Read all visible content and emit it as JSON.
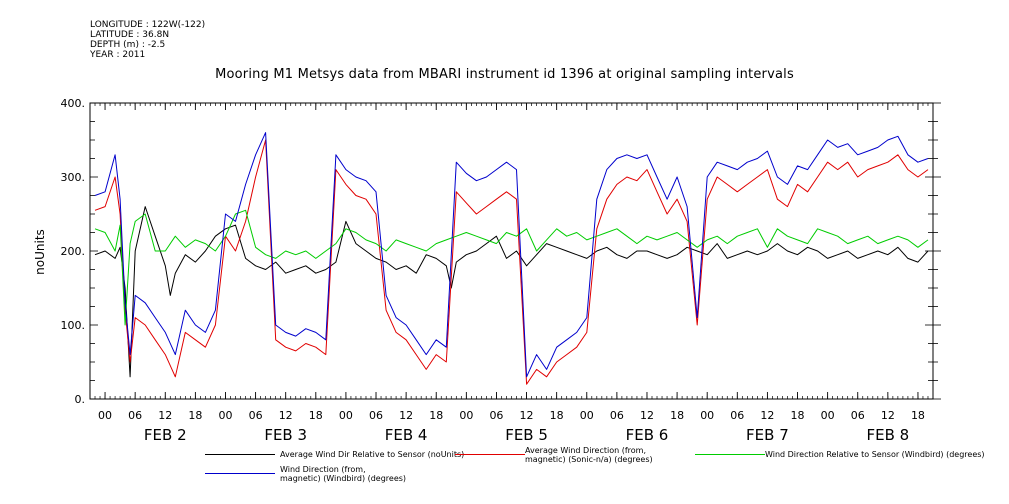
{
  "metadata": {
    "longitude": "LONGITUDE : 122W(-122)",
    "latitude": "LATITUDE : 36.8N",
    "depth": "DEPTH (m) : -2.5",
    "year": "YEAR : 2011"
  },
  "chart_data": {
    "type": "line",
    "title": "Mooring M1 Metsys data from MBARI instrument id 1396 at original sampling intervals",
    "ylabel": "noUnits",
    "ylim": [
      0,
      400
    ],
    "yticks": [
      0,
      100,
      200,
      300,
      400
    ],
    "ytick_labels": [
      "0.",
      "100.",
      "200.",
      "300.",
      "400."
    ],
    "xlim": [
      -3,
      165
    ],
    "hour_ticks": [
      0,
      6,
      12,
      18,
      24,
      30,
      36,
      42,
      48,
      54,
      60,
      66,
      72,
      78,
      84,
      90,
      96,
      102,
      108,
      114,
      120,
      126,
      132,
      138,
      144,
      150,
      156,
      162
    ],
    "hour_tick_labels": [
      "00",
      "06",
      "12",
      "18",
      "00",
      "06",
      "12",
      "18",
      "00",
      "06",
      "12",
      "18",
      "00",
      "06",
      "12",
      "18",
      "00",
      "06",
      "12",
      "18",
      "00",
      "06",
      "12",
      "18",
      "00",
      "06",
      "12",
      "18"
    ],
    "day_labels": [
      "FEB  2",
      "FEB  3",
      "FEB  4",
      "FEB  5",
      "FEB  6",
      "FEB  7",
      "FEB  8"
    ],
    "day_label_hours": [
      12,
      36,
      60,
      84,
      108,
      132,
      156
    ],
    "x_unit": "hours since 2011-02-02 00:00",
    "series": [
      {
        "name": "Average Wind Dir Relative to Sensor (noUnits)",
        "color": "#000000",
        "x": [
          -2,
          0,
          2,
          3,
          4,
          5,
          6,
          8,
          10,
          12,
          13,
          14,
          16,
          18,
          20,
          22,
          24,
          26,
          28,
          30,
          32,
          34,
          36,
          38,
          40,
          42,
          44,
          46,
          48,
          50,
          52,
          54,
          56,
          58,
          60,
          62,
          64,
          66,
          68,
          69,
          70,
          72,
          74,
          76,
          78,
          80,
          82,
          84,
          86,
          88,
          90,
          92,
          94,
          96,
          98,
          100,
          102,
          104,
          106,
          108,
          110,
          112,
          114,
          116,
          118,
          120,
          122,
          124,
          126,
          128,
          130,
          132,
          134,
          136,
          138,
          140,
          142,
          144,
          146,
          148,
          150,
          152,
          154,
          156,
          158,
          160,
          162,
          164
        ],
        "y": [
          195,
          200,
          190,
          205,
          150,
          30,
          200,
          260,
          220,
          180,
          140,
          170,
          195,
          185,
          200,
          220,
          230,
          235,
          190,
          180,
          175,
          185,
          170,
          175,
          180,
          170,
          175,
          185,
          240,
          210,
          200,
          190,
          185,
          175,
          180,
          170,
          195,
          190,
          180,
          150,
          185,
          195,
          200,
          210,
          220,
          190,
          200,
          180,
          195,
          210,
          205,
          200,
          195,
          190,
          200,
          205,
          195,
          190,
          200,
          200,
          195,
          190,
          195,
          205,
          200,
          195,
          210,
          190,
          195,
          200,
          195,
          200,
          210,
          200,
          195,
          205,
          200,
          190,
          195,
          200,
          190,
          195,
          200,
          195,
          205,
          190,
          185,
          200
        ]
      },
      {
        "name": "Average Wind Direction (from, magnetic) (Sonic-n/a) (degrees)",
        "color": "#e00000",
        "x": [
          -2,
          0,
          2,
          3,
          4,
          5,
          6,
          8,
          10,
          12,
          14,
          16,
          18,
          20,
          22,
          24,
          26,
          28,
          30,
          32,
          34,
          36,
          38,
          40,
          42,
          44,
          46,
          48,
          50,
          52,
          54,
          56,
          58,
          60,
          62,
          64,
          66,
          68,
          70,
          72,
          74,
          76,
          78,
          80,
          82,
          84,
          86,
          88,
          90,
          92,
          94,
          96,
          98,
          100,
          102,
          104,
          106,
          108,
          110,
          112,
          114,
          116,
          118,
          120,
          122,
          124,
          126,
          128,
          130,
          132,
          134,
          136,
          138,
          140,
          142,
          144,
          146,
          148,
          150,
          152,
          154,
          156,
          158,
          160,
          162,
          164
        ],
        "y": [
          255,
          260,
          300,
          250,
          120,
          50,
          110,
          100,
          80,
          60,
          30,
          90,
          80,
          70,
          100,
          220,
          200,
          240,
          300,
          350,
          80,
          70,
          65,
          75,
          70,
          60,
          310,
          290,
          275,
          270,
          250,
          120,
          90,
          80,
          60,
          40,
          60,
          50,
          280,
          265,
          250,
          260,
          270,
          280,
          270,
          20,
          40,
          30,
          50,
          60,
          70,
          90,
          230,
          270,
          290,
          300,
          295,
          310,
          280,
          250,
          270,
          240,
          100,
          270,
          300,
          290,
          280,
          290,
          300,
          310,
          270,
          260,
          290,
          280,
          300,
          320,
          310,
          320,
          300,
          310,
          315,
          320,
          330,
          310,
          300,
          310
        ]
      },
      {
        "name": "Wind Direction Relative to Sensor (Windbird) (degrees)",
        "color": "#00cc00",
        "x": [
          -2,
          0,
          2,
          3,
          4,
          5,
          6,
          8,
          10,
          12,
          14,
          16,
          18,
          20,
          22,
          24,
          26,
          28,
          30,
          32,
          34,
          36,
          38,
          40,
          42,
          44,
          46,
          48,
          50,
          52,
          54,
          56,
          58,
          60,
          62,
          64,
          66,
          68,
          70,
          72,
          74,
          76,
          78,
          80,
          82,
          84,
          86,
          88,
          90,
          92,
          94,
          96,
          98,
          100,
          102,
          104,
          106,
          108,
          110,
          112,
          114,
          116,
          118,
          120,
          122,
          124,
          126,
          128,
          130,
          132,
          134,
          136,
          138,
          140,
          142,
          144,
          146,
          148,
          150,
          152,
          154,
          156,
          158,
          160,
          162,
          164
        ],
        "y": [
          230,
          225,
          200,
          235,
          100,
          210,
          240,
          250,
          200,
          200,
          220,
          205,
          215,
          210,
          200,
          220,
          250,
          255,
          205,
          195,
          190,
          200,
          195,
          200,
          190,
          200,
          210,
          230,
          225,
          215,
          210,
          200,
          215,
          210,
          205,
          200,
          210,
          215,
          220,
          225,
          220,
          215,
          210,
          225,
          220,
          230,
          200,
          215,
          230,
          220,
          225,
          215,
          220,
          225,
          230,
          220,
          210,
          220,
          215,
          220,
          225,
          215,
          205,
          215,
          220,
          210,
          220,
          225,
          230,
          205,
          230,
          220,
          215,
          210,
          230,
          225,
          220,
          210,
          215,
          220,
          210,
          215,
          220,
          215,
          205,
          215
        ]
      },
      {
        "name": "Wind Direction (from, magnetic) (Windbird) (degrees)",
        "color": "#0000cc",
        "x": [
          -2,
          0,
          2,
          3,
          4,
          5,
          6,
          8,
          10,
          12,
          14,
          16,
          18,
          20,
          22,
          24,
          26,
          28,
          30,
          32,
          34,
          36,
          38,
          40,
          42,
          44,
          46,
          48,
          50,
          52,
          54,
          56,
          58,
          60,
          62,
          64,
          66,
          68,
          70,
          72,
          74,
          76,
          78,
          80,
          82,
          84,
          86,
          88,
          90,
          92,
          94,
          96,
          98,
          100,
          102,
          104,
          106,
          108,
          110,
          112,
          114,
          116,
          118,
          120,
          122,
          124,
          126,
          128,
          130,
          132,
          134,
          136,
          138,
          140,
          142,
          144,
          146,
          148,
          150,
          152,
          154,
          156,
          158,
          160,
          162,
          164
        ],
        "y": [
          275,
          280,
          330,
          270,
          130,
          60,
          140,
          130,
          110,
          90,
          60,
          120,
          100,
          90,
          120,
          250,
          240,
          290,
          330,
          360,
          100,
          90,
          85,
          95,
          90,
          80,
          330,
          310,
          300,
          295,
          280,
          140,
          110,
          100,
          80,
          60,
          80,
          70,
          320,
          305,
          295,
          300,
          310,
          320,
          310,
          30,
          60,
          40,
          70,
          80,
          90,
          110,
          270,
          310,
          325,
          330,
          325,
          330,
          300,
          270,
          300,
          260,
          110,
          300,
          320,
          315,
          310,
          320,
          325,
          335,
          300,
          290,
          315,
          310,
          330,
          350,
          340,
          345,
          330,
          335,
          340,
          350,
          355,
          330,
          320,
          325
        ]
      }
    ]
  },
  "legend": [
    {
      "label": "Average Wind Dir Relative to Sensor (noUnits)",
      "color": "#000000"
    },
    {
      "label": "Average Wind Direction (from,\nmagnetic) (Sonic-n/a) (degrees)",
      "color": "#e00000"
    },
    {
      "label": "Wind Direction Relative to Sensor (Windbird) (degrees)",
      "color": "#00cc00"
    },
    {
      "label": "Wind Direction (from,\nmagnetic) (Windbird) (degrees)",
      "color": "#0000cc"
    }
  ]
}
